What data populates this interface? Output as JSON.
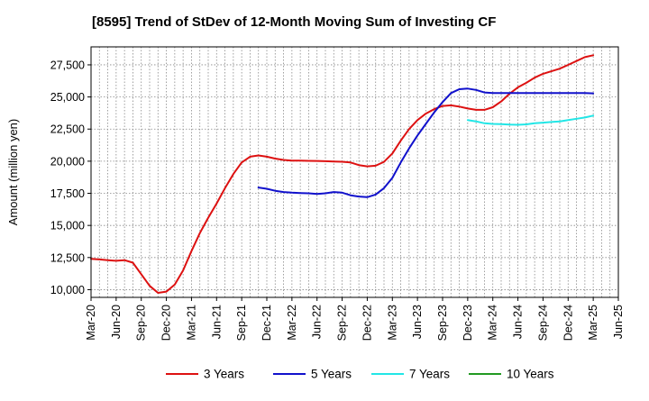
{
  "chart_data": {
    "type": "line",
    "title": "[8595]  Trend of StDev of 12-Month Moving Sum of Investing CF",
    "ylabel": "Amount (million yen)",
    "xlabel": "",
    "ylim": [
      9400,
      28900
    ],
    "yticks": [
      10000,
      12500,
      15000,
      17500,
      20000,
      22500,
      25000,
      27500
    ],
    "ytick_labels": [
      "10,000",
      "12,500",
      "15,000",
      "17,500",
      "20,000",
      "22,500",
      "25,000",
      "27,500"
    ],
    "x_start": "Mar-20",
    "xtick_labels": [
      "Mar-20",
      "Jun-20",
      "Sep-20",
      "Dec-20",
      "Mar-21",
      "Jun-21",
      "Sep-21",
      "Dec-21",
      "Mar-22",
      "Jun-22",
      "Sep-22",
      "Dec-22",
      "Mar-23",
      "Jun-23",
      "Sep-23",
      "Dec-23",
      "Mar-24",
      "Jun-24",
      "Sep-24",
      "Dec-24",
      "Mar-25",
      "Jun-25"
    ],
    "grid": true,
    "legend_position": "bottom",
    "series": [
      {
        "name": "3 Years",
        "color": "#dd1111",
        "x": [
          "Mar-20",
          "Apr-20",
          "May-20",
          "Jun-20",
          "Jul-20",
          "Aug-20",
          "Sep-20",
          "Oct-20",
          "Nov-20",
          "Dec-20",
          "Jan-21",
          "Feb-21",
          "Mar-21",
          "Apr-21",
          "May-21",
          "Jun-21",
          "Jul-21",
          "Aug-21",
          "Sep-21",
          "Oct-21",
          "Nov-21",
          "Dec-21",
          "Jan-22",
          "Feb-22",
          "Mar-22",
          "Apr-22",
          "May-22",
          "Jun-22",
          "Jul-22",
          "Aug-22",
          "Sep-22",
          "Oct-22",
          "Nov-22",
          "Dec-22",
          "Jan-23",
          "Feb-23",
          "Mar-23",
          "Apr-23",
          "May-23",
          "Jun-23",
          "Jul-23",
          "Aug-23",
          "Sep-23",
          "Oct-23",
          "Nov-23",
          "Dec-23",
          "Jan-24",
          "Feb-24",
          "Mar-24",
          "Apr-24",
          "May-24",
          "Jun-24",
          "Jul-24",
          "Aug-24",
          "Sep-24",
          "Oct-24",
          "Nov-24",
          "Dec-24",
          "Jan-25",
          "Feb-25",
          "Mar-25"
        ],
        "values": [
          12400,
          12350,
          12300,
          12250,
          12300,
          12100,
          11200,
          10300,
          9750,
          9850,
          10400,
          11500,
          13000,
          14400,
          15600,
          16700,
          17900,
          19000,
          19900,
          20350,
          20450,
          20350,
          20200,
          20100,
          20050,
          20050,
          20030,
          20020,
          20000,
          19980,
          19960,
          19900,
          19700,
          19600,
          19650,
          19950,
          20600,
          21600,
          22500,
          23200,
          23700,
          24050,
          24300,
          24350,
          24250,
          24100,
          24000,
          24000,
          24200,
          24650,
          25250,
          25750,
          26100,
          26500,
          26800,
          27000,
          27200,
          27500,
          27800,
          28100,
          28250
        ]
      },
      {
        "name": "5 Years",
        "color": "#1111cc",
        "x": [
          "Nov-21",
          "Dec-21",
          "Jan-22",
          "Feb-22",
          "Mar-22",
          "Apr-22",
          "May-22",
          "Jun-22",
          "Jul-22",
          "Aug-22",
          "Sep-22",
          "Oct-22",
          "Nov-22",
          "Dec-22",
          "Jan-23",
          "Feb-23",
          "Mar-23",
          "Apr-23",
          "May-23",
          "Jun-23",
          "Jul-23",
          "Aug-23",
          "Sep-23",
          "Oct-23",
          "Nov-23",
          "Dec-23",
          "Jan-24",
          "Feb-24",
          "Mar-24",
          "Apr-24",
          "May-24",
          "Jun-24",
          "Jul-24",
          "Aug-24",
          "Sep-24",
          "Oct-24",
          "Nov-24",
          "Dec-24",
          "Jan-25",
          "Feb-25",
          "Mar-25"
        ],
        "values": [
          17950,
          17850,
          17700,
          17600,
          17550,
          17520,
          17500,
          17450,
          17500,
          17600,
          17550,
          17350,
          17250,
          17200,
          17400,
          17900,
          18700,
          19900,
          21000,
          22000,
          22900,
          23800,
          24600,
          25300,
          25600,
          25650,
          25550,
          25350,
          25300,
          25300,
          25300,
          25300,
          25300,
          25300,
          25300,
          25300,
          25300,
          25300,
          25300,
          25300,
          25280
        ]
      },
      {
        "name": "7 Years",
        "color": "#22e6e6",
        "x": [
          "Dec-23",
          "Jan-24",
          "Feb-24",
          "Mar-24",
          "Apr-24",
          "May-24",
          "Jun-24",
          "Jul-24",
          "Aug-24",
          "Sep-24",
          "Oct-24",
          "Nov-24",
          "Dec-24",
          "Jan-25",
          "Feb-25",
          "Mar-25"
        ],
        "values": [
          23200,
          23100,
          22950,
          22900,
          22880,
          22850,
          22830,
          22870,
          22950,
          23000,
          23050,
          23100,
          23200,
          23300,
          23400,
          23550
        ]
      },
      {
        "name": "10 Years",
        "color": "#229922",
        "x": [],
        "values": []
      }
    ]
  }
}
